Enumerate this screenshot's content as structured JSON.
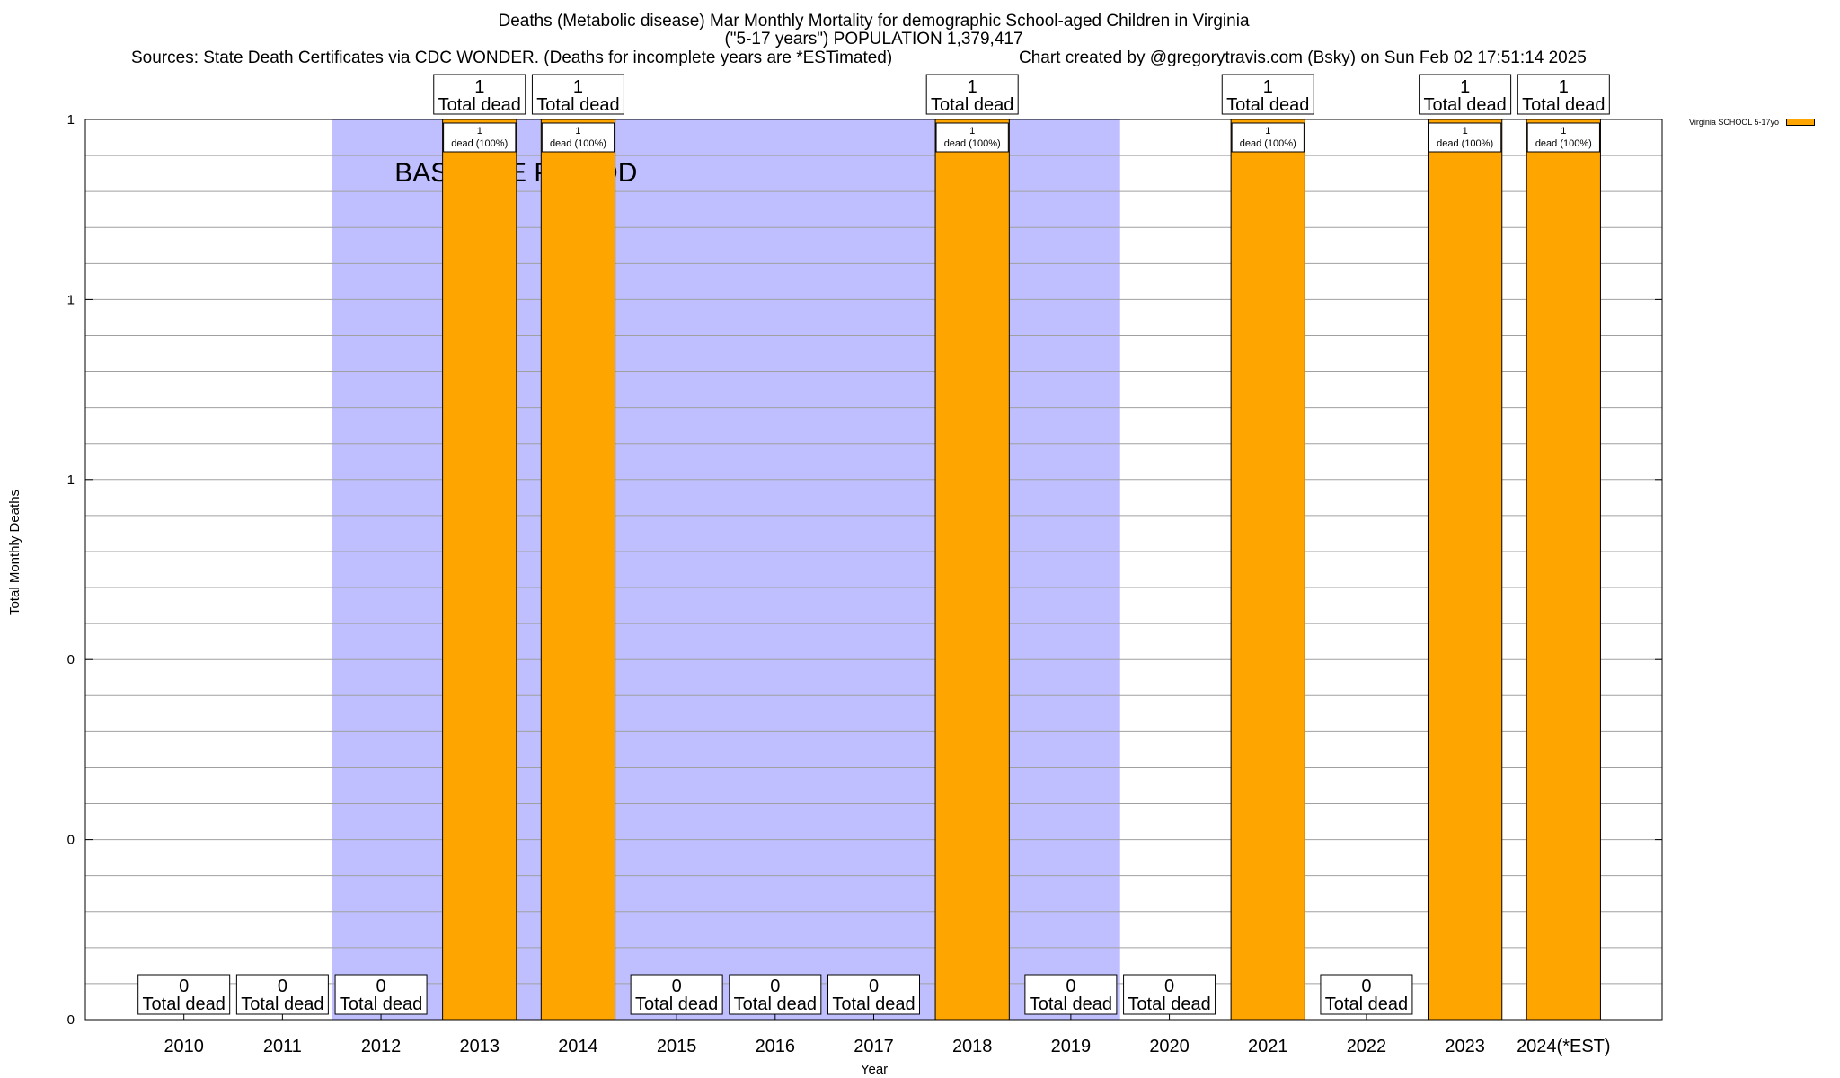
{
  "chart_data": {
    "type": "bar",
    "title_line1": "Deaths (Metabolic disease) Mar Monthly Mortality for demographic School-aged Children in Virginia",
    "title_line2": "(\"5-17 years\") POPULATION 1,379,417",
    "sources": "Sources: State Death Certificates via CDC WONDER. (Deaths for incomplete years are *ESTimated)",
    "credit": "Chart created by @gregorytravis.com (Bsky) on Sun Feb 02 17:51:14 2025",
    "xlabel": "Year",
    "ylabel": "Total Monthly Deaths",
    "categories": [
      "2010",
      "2011",
      "2012",
      "2013",
      "2014",
      "2015",
      "2016",
      "2017",
      "2018",
      "2019",
      "2020",
      "2021",
      "2022",
      "2023",
      "2024(*EST)"
    ],
    "series": [
      {
        "name": "Virginia SCHOOL 5-17yo",
        "color": "#ffa500",
        "values": [
          0,
          0,
          0,
          1,
          1,
          0,
          0,
          0,
          1,
          0,
          0,
          1,
          0,
          1,
          1
        ]
      }
    ],
    "ylim": [
      0,
      1
    ],
    "ytick_labels": [
      "0",
      "0",
      "0",
      "1",
      "1",
      "1"
    ],
    "total_label": "Total dead",
    "segment_label": "dead (100%)",
    "baseline": {
      "label": "BASELINE PERIOD",
      "start": "2012",
      "end": "2019",
      "color": "#bfbfff"
    },
    "grid": true,
    "legend_position": "top-right"
  }
}
